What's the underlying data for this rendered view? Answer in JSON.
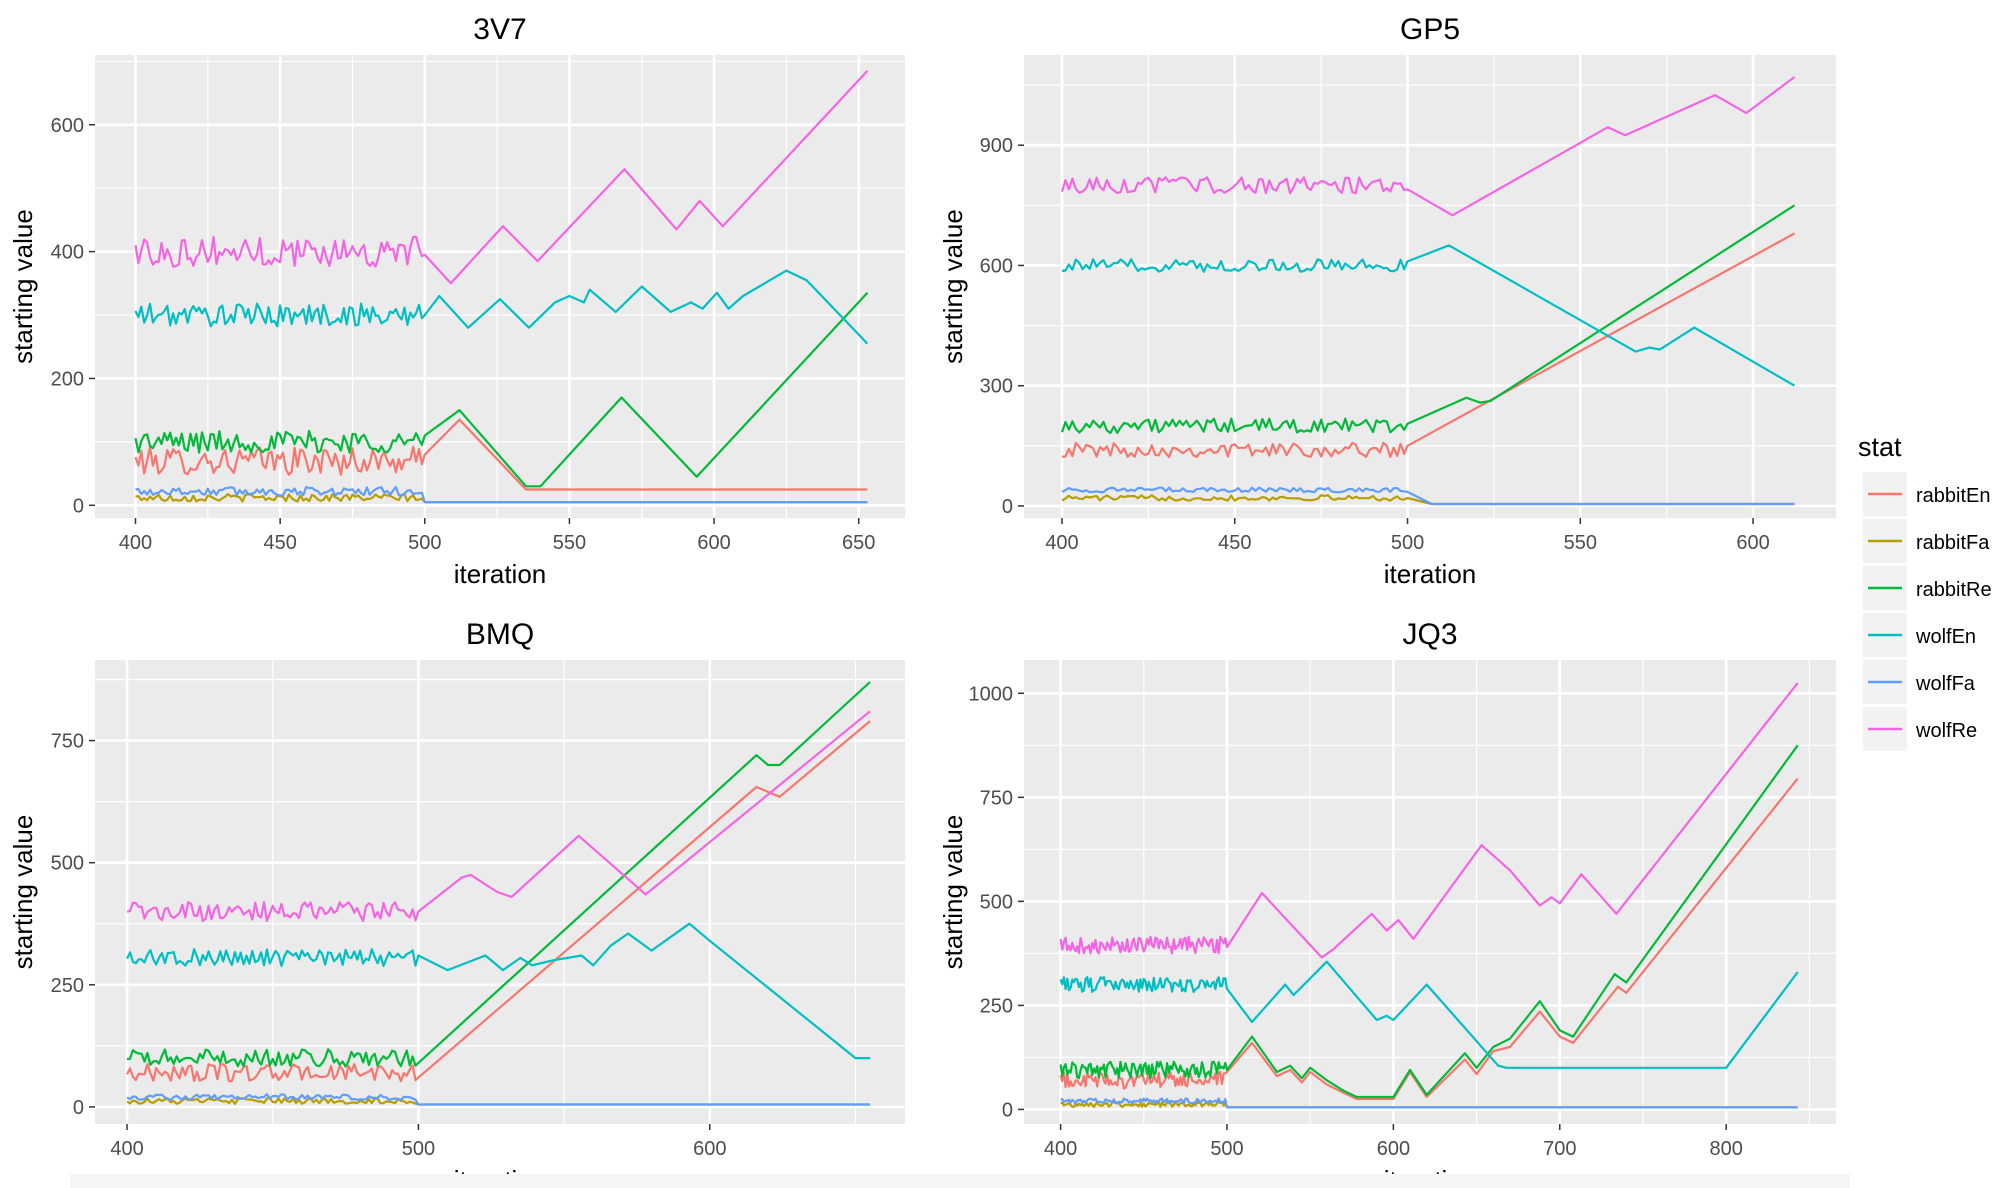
{
  "colors": {
    "rabbitEn": "#F8766D",
    "rabbitFa": "#B79F00",
    "rabbitRe": "#00BA38",
    "wolfEn": "#00BFC4",
    "wolfFa": "#619CFF",
    "wolfRe": "#F564E3",
    "panel": "#EBEBEB",
    "grid": "#FFFFFF"
  },
  "legend": {
    "title": "stat",
    "items": [
      "rabbitEn",
      "rabbitFa",
      "rabbitRe",
      "wolfEn",
      "wolfFa",
      "wolfRe"
    ]
  },
  "chart_data": [
    {
      "type": "line",
      "title": "3V7",
      "xlabel": "iteration",
      "ylabel": "starting value",
      "xlim": [
        386,
        666
      ],
      "ylim": [
        -20,
        710
      ],
      "xticks": [
        400,
        450,
        500,
        550,
        600,
        650
      ],
      "yticks": [
        0,
        200,
        400,
        600
      ],
      "grid": true,
      "legend": "right",
      "series": [
        {
          "name": "rabbitEn",
          "base": 70,
          "noise": 22,
          "after": [
            [
              500,
              80
            ],
            [
              512,
              135
            ],
            [
              535,
              25
            ],
            [
              653,
              25
            ]
          ]
        },
        {
          "name": "rabbitFa",
          "base": 12,
          "noise": 6,
          "after": [
            [
              500,
              5
            ],
            [
              653,
              5
            ]
          ]
        },
        {
          "name": "rabbitRe",
          "base": 100,
          "noise": 18,
          "after": [
            [
              500,
              110
            ],
            [
              512,
              150
            ],
            [
              535,
              30
            ],
            [
              540,
              30
            ],
            [
              568,
              170
            ],
            [
              594,
              45
            ],
            [
              653,
              335
            ]
          ]
        },
        {
          "name": "wolfEn",
          "base": 300,
          "noise": 18,
          "after": [
            [
              500,
              300
            ],
            [
              505,
              330
            ],
            [
              515,
              280
            ],
            [
              526,
              325
            ],
            [
              536,
              280
            ],
            [
              545,
              320
            ],
            [
              550,
              330
            ],
            [
              555,
              320
            ],
            [
              557,
              340
            ],
            [
              566,
              305
            ],
            [
              575,
              345
            ],
            [
              585,
              305
            ],
            [
              592,
              320
            ],
            [
              596,
              310
            ],
            [
              601,
              335
            ],
            [
              605,
              310
            ],
            [
              610,
              330
            ],
            [
              625,
              370
            ],
            [
              632,
              355
            ],
            [
              653,
              255
            ]
          ]
        },
        {
          "name": "wolfFa",
          "base": 22,
          "noise": 7,
          "after": [
            [
              500,
              5
            ],
            [
              653,
              5
            ]
          ]
        },
        {
          "name": "wolfRe",
          "base": 400,
          "noise": 24,
          "after": [
            [
              500,
              395
            ],
            [
              509,
              350
            ],
            [
              527,
              440
            ],
            [
              539,
              385
            ],
            [
              569,
              530
            ],
            [
              587,
              435
            ],
            [
              595,
              480
            ],
            [
              603,
              440
            ],
            [
              653,
              685
            ]
          ]
        }
      ]
    },
    {
      "type": "line",
      "title": "GP5",
      "xlabel": "iteration",
      "ylabel": "starting value",
      "xlim": [
        389,
        624
      ],
      "ylim": [
        -30,
        1125
      ],
      "xticks": [
        400,
        450,
        500,
        550,
        600
      ],
      "yticks": [
        0,
        300,
        600,
        900
      ],
      "grid": true,
      "legend": "right",
      "series": [
        {
          "name": "rabbitEn",
          "base": 140,
          "noise": 18,
          "after": [
            [
              500,
              150
            ],
            [
              612,
              680
            ]
          ]
        },
        {
          "name": "rabbitFa",
          "base": 20,
          "noise": 7,
          "after": [
            [
              500,
              20
            ],
            [
              507,
              5
            ],
            [
              612,
              5
            ]
          ]
        },
        {
          "name": "rabbitRe",
          "base": 200,
          "noise": 18,
          "after": [
            [
              500,
              205
            ],
            [
              517,
              270
            ],
            [
              521,
              258
            ],
            [
              524,
              262
            ],
            [
              612,
              750
            ]
          ]
        },
        {
          "name": "wolfEn",
          "base": 600,
          "noise": 16,
          "after": [
            [
              500,
              610
            ],
            [
              512,
              650
            ],
            [
              566,
              385
            ],
            [
              570,
              395
            ],
            [
              573,
              390
            ],
            [
              583,
              445
            ],
            [
              612,
              300
            ]
          ]
        },
        {
          "name": "wolfFa",
          "base": 40,
          "noise": 6,
          "after": [
            [
              500,
              35
            ],
            [
              507,
              5
            ],
            [
              612,
              5
            ]
          ]
        },
        {
          "name": "wolfRe",
          "base": 800,
          "noise": 20,
          "after": [
            [
              500,
              790
            ],
            [
              513,
              725
            ],
            [
              558,
              945
            ],
            [
              563,
              925
            ],
            [
              589,
              1025
            ],
            [
              598,
              980
            ],
            [
              612,
              1070
            ]
          ]
        }
      ]
    },
    {
      "type": "line",
      "title": "BMQ",
      "xlabel": "iteration",
      "ylabel": "starting value",
      "xlim": [
        389,
        667
      ],
      "ylim": [
        -35,
        915
      ],
      "xticks": [
        400,
        500,
        600
      ],
      "yticks": [
        0,
        250,
        500,
        750
      ],
      "grid": true,
      "legend": "right",
      "series": [
        {
          "name": "rabbitEn",
          "base": 70,
          "noise": 18,
          "after": [
            [
              500,
              60
            ],
            [
              616,
              655
            ],
            [
              624,
              635
            ],
            [
              655,
              790
            ]
          ]
        },
        {
          "name": "rabbitFa",
          "base": 12,
          "noise": 6,
          "after": [
            [
              500,
              5
            ],
            [
              655,
              5
            ]
          ]
        },
        {
          "name": "rabbitRe",
          "base": 100,
          "noise": 18,
          "after": [
            [
              500,
              90
            ],
            [
              616,
              720
            ],
            [
              620,
              700
            ],
            [
              624,
              700
            ],
            [
              655,
              870
            ]
          ]
        },
        {
          "name": "wolfEn",
          "base": 305,
          "noise": 18,
          "after": [
            [
              500,
              310
            ],
            [
              510,
              280
            ],
            [
              523,
              310
            ],
            [
              529,
              280
            ],
            [
              535,
              305
            ],
            [
              539,
              290
            ],
            [
              546,
              300
            ],
            [
              556,
              310
            ],
            [
              560,
              290
            ],
            [
              566,
              330
            ],
            [
              572,
              355
            ],
            [
              580,
              320
            ],
            [
              593,
              375
            ],
            [
              600,
              340
            ],
            [
              650,
              100
            ],
            [
              655,
              100
            ]
          ]
        },
        {
          "name": "wolfFa",
          "base": 20,
          "noise": 6,
          "after": [
            [
              500,
              5
            ],
            [
              655,
              5
            ]
          ]
        },
        {
          "name": "wolfRe",
          "base": 400,
          "noise": 20,
          "after": [
            [
              500,
              400
            ],
            [
              515,
              470
            ],
            [
              518,
              475
            ],
            [
              527,
              440
            ],
            [
              532,
              430
            ],
            [
              555,
              555
            ],
            [
              578,
              435
            ],
            [
              655,
              810
            ]
          ]
        }
      ]
    },
    {
      "type": "line",
      "title": "JQ3",
      "xlabel": "iteration",
      "ylabel": "starting value",
      "xlim": [
        378,
        866
      ],
      "ylim": [
        -35,
        1080
      ],
      "xticks": [
        400,
        500,
        600,
        700,
        800
      ],
      "yticks": [
        0,
        250,
        500,
        750,
        1000
      ],
      "grid": true,
      "legend": "right",
      "series": [
        {
          "name": "rabbitEn",
          "base": 70,
          "noise": 20,
          "after": [
            [
              500,
              90
            ],
            [
              515,
              160
            ],
            [
              530,
              80
            ],
            [
              538,
              95
            ],
            [
              545,
              65
            ],
            [
              550,
              90
            ],
            [
              560,
              60
            ],
            [
              570,
              40
            ],
            [
              578,
              25
            ],
            [
              600,
              25
            ],
            [
              610,
              90
            ],
            [
              620,
              30
            ],
            [
              643,
              120
            ],
            [
              650,
              85
            ],
            [
              660,
              140
            ],
            [
              670,
              150
            ],
            [
              688,
              235
            ],
            [
              700,
              175
            ],
            [
              708,
              160
            ],
            [
              735,
              295
            ],
            [
              740,
              280
            ],
            [
              843,
              795
            ]
          ]
        },
        {
          "name": "rabbitFa",
          "base": 12,
          "noise": 6,
          "after": [
            [
              500,
              5
            ],
            [
              843,
              5
            ]
          ]
        },
        {
          "name": "rabbitRe",
          "base": 95,
          "noise": 20,
          "after": [
            [
              500,
              95
            ],
            [
              515,
              175
            ],
            [
              530,
              90
            ],
            [
              538,
              105
            ],
            [
              545,
              75
            ],
            [
              550,
              100
            ],
            [
              560,
              70
            ],
            [
              570,
              45
            ],
            [
              578,
              30
            ],
            [
              600,
              30
            ],
            [
              610,
              95
            ],
            [
              620,
              35
            ],
            [
              643,
              135
            ],
            [
              650,
              100
            ],
            [
              660,
              150
            ],
            [
              670,
              170
            ],
            [
              688,
              260
            ],
            [
              700,
              190
            ],
            [
              708,
              175
            ],
            [
              733,
              325
            ],
            [
              740,
              305
            ],
            [
              843,
              875
            ]
          ]
        },
        {
          "name": "wolfEn",
          "base": 300,
          "noise": 18,
          "after": [
            [
              500,
              290
            ],
            [
              515,
              210
            ],
            [
              535,
              300
            ],
            [
              540,
              275
            ],
            [
              560,
              355
            ],
            [
              590,
              215
            ],
            [
              596,
              225
            ],
            [
              600,
              215
            ],
            [
              620,
              300
            ],
            [
              663,
              105
            ],
            [
              668,
              100
            ],
            [
              800,
              100
            ],
            [
              843,
              330
            ]
          ]
        },
        {
          "name": "wolfFa",
          "base": 20,
          "noise": 6,
          "after": [
            [
              500,
              5
            ],
            [
              843,
              5
            ]
          ]
        },
        {
          "name": "wolfRe",
          "base": 395,
          "noise": 20,
          "after": [
            [
              500,
              390
            ],
            [
              521,
              520
            ],
            [
              557,
              365
            ],
            [
              564,
              385
            ],
            [
              587,
              470
            ],
            [
              596,
              430
            ],
            [
              603,
              455
            ],
            [
              612,
              410
            ],
            [
              653,
              635
            ],
            [
              670,
              575
            ],
            [
              688,
              490
            ],
            [
              695,
              510
            ],
            [
              700,
              495
            ],
            [
              713,
              565
            ],
            [
              734,
              470
            ],
            [
              843,
              1025
            ]
          ]
        }
      ]
    }
  ]
}
